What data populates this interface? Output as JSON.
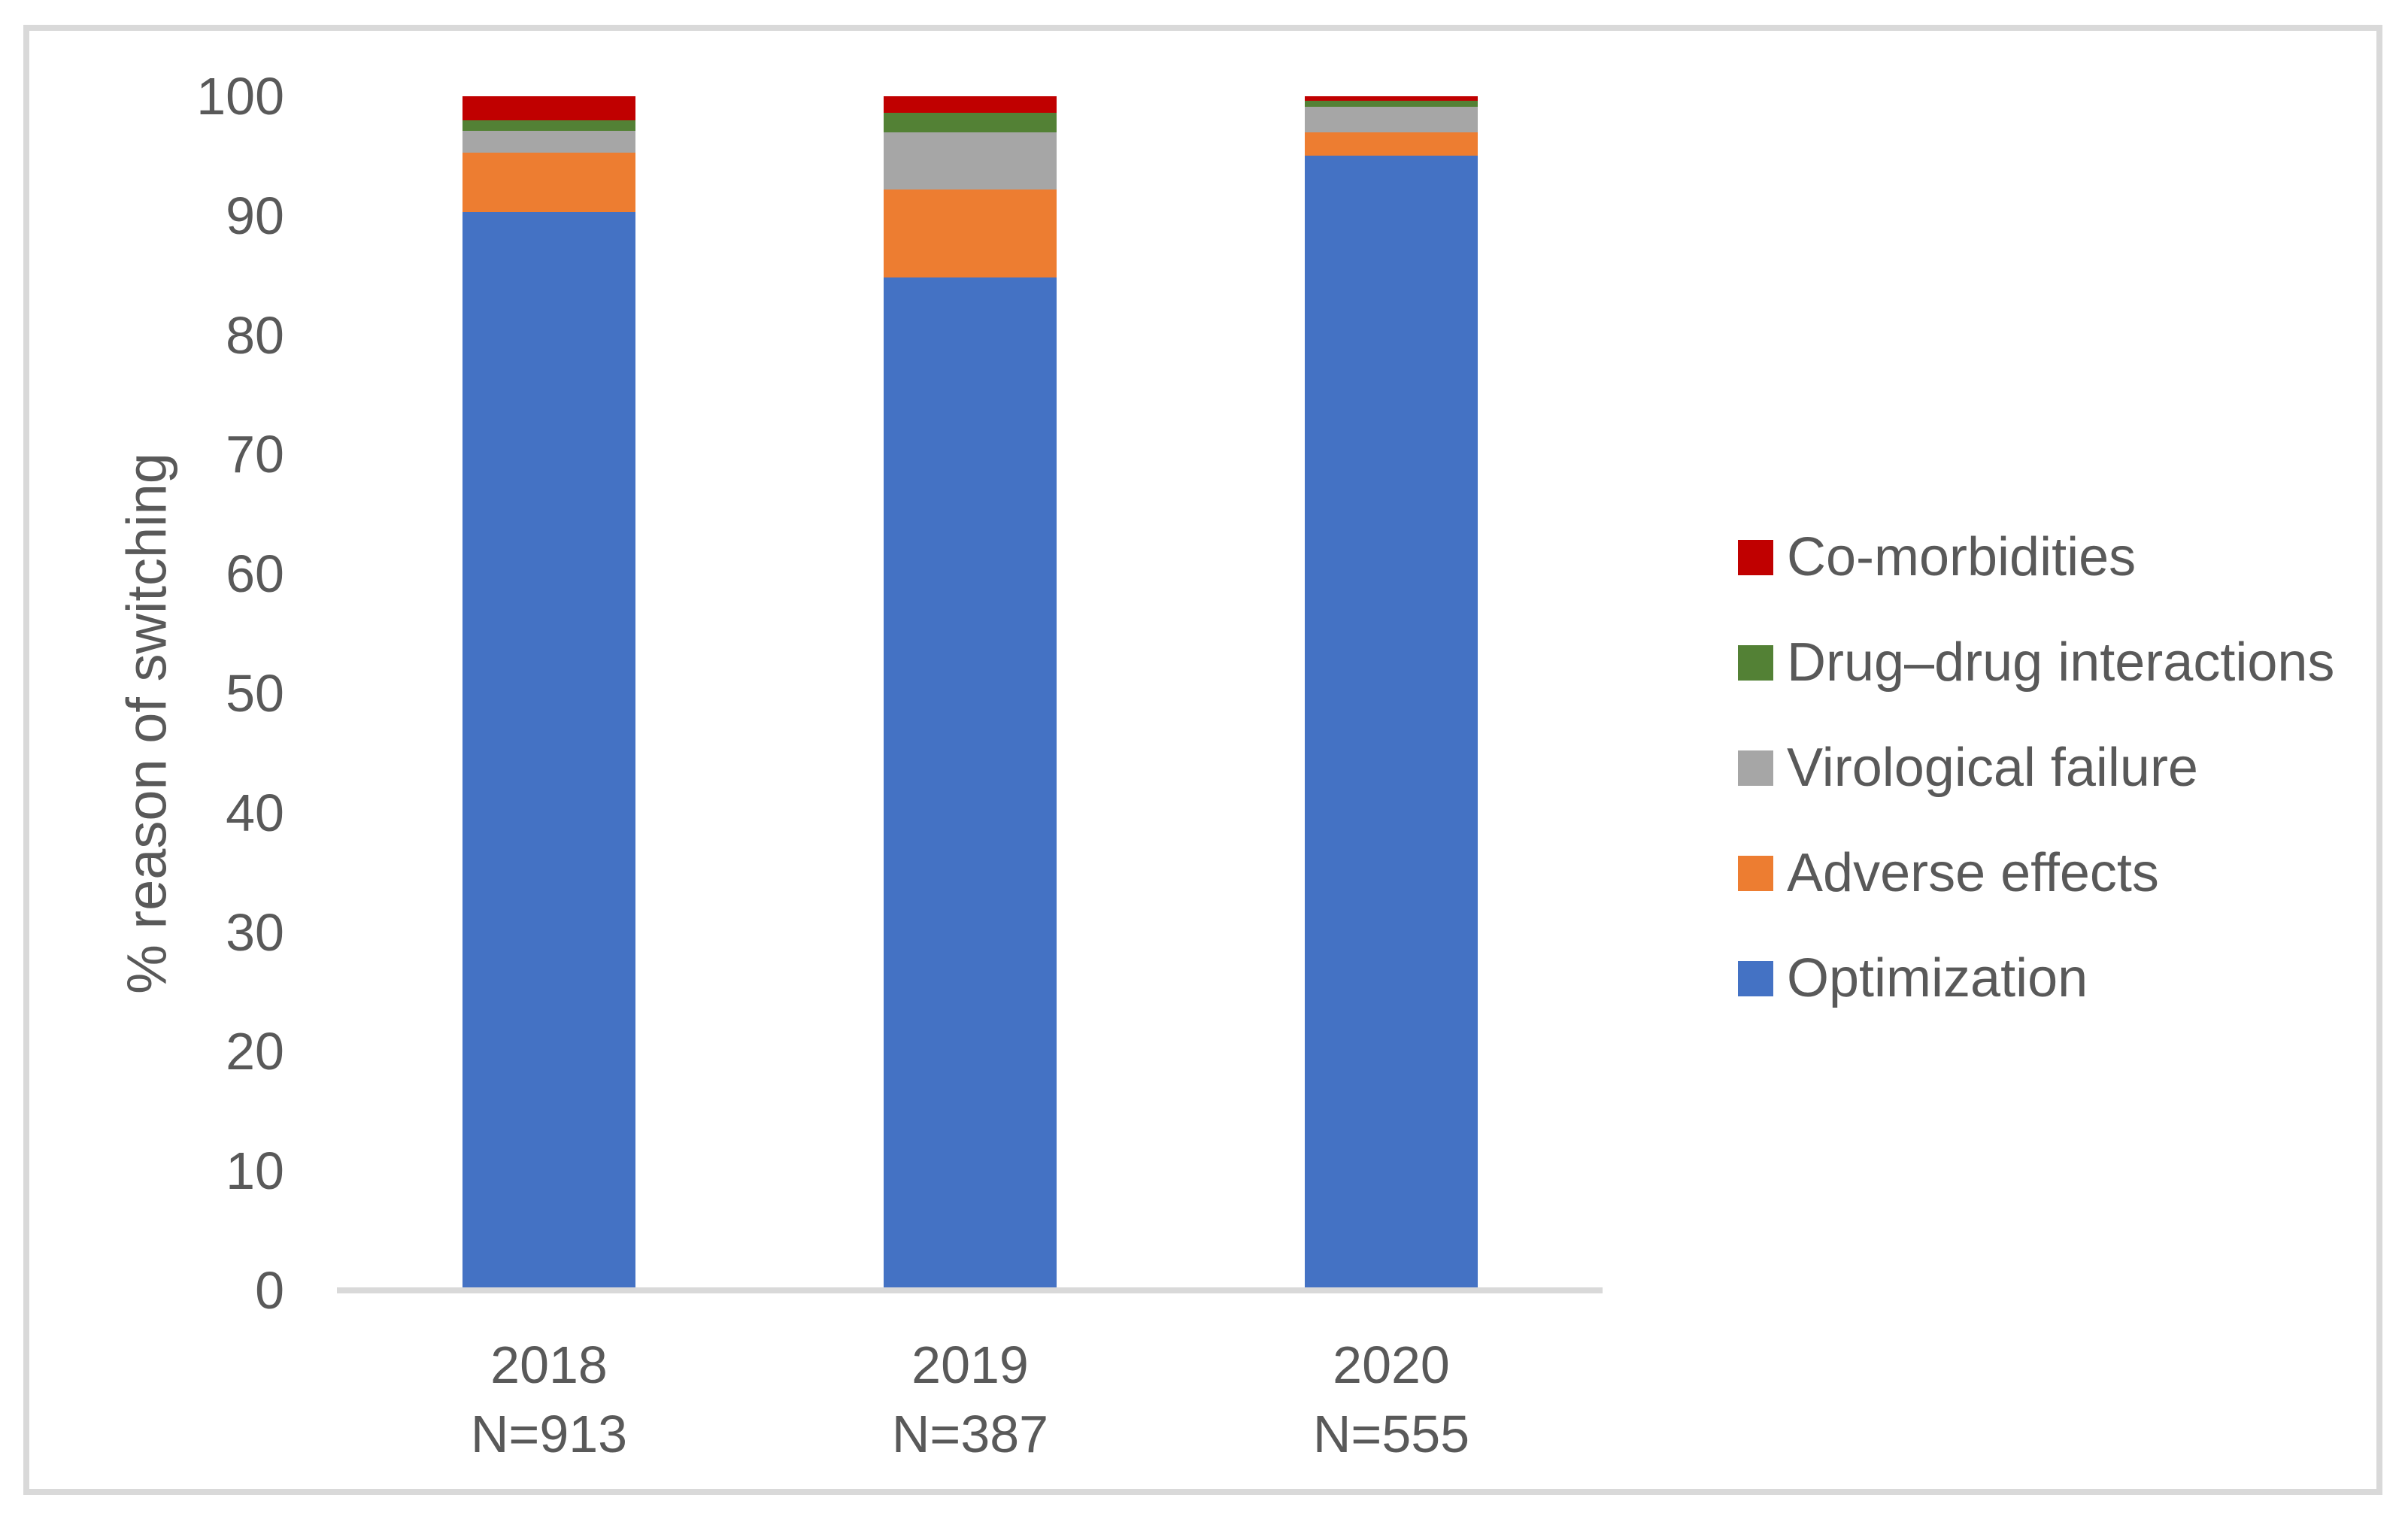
{
  "figure": {
    "kind": "stacked-bar-chart-figure",
    "background": "#ffffff",
    "border_color": "#D9D9D9",
    "text_color": "#595959",
    "axis_line_color": "#D9D9D9"
  },
  "chart_data": {
    "type": "bar",
    "stacked": true,
    "title": "",
    "xlabel": "",
    "ylabel": "% reason of switching",
    "ylim": [
      0,
      100
    ],
    "yticks": [
      0,
      10,
      20,
      30,
      40,
      50,
      60,
      70,
      80,
      90,
      100
    ],
    "grid": false,
    "legend_position": "right",
    "categories": [
      "2018",
      "2019",
      "2020"
    ],
    "category_sublabels": [
      "N=913",
      "N=387",
      "N=555"
    ],
    "series": [
      {
        "name": "Optimization",
        "color": "#4472C4",
        "values": [
          90.3,
          84.8,
          95.0
        ]
      },
      {
        "name": "Adverse effects",
        "color": "#ED7D31",
        "values": [
          5.0,
          7.4,
          2.0
        ]
      },
      {
        "name": "Virological failure",
        "color": "#A6A6A6",
        "values": [
          1.8,
          4.8,
          2.1
        ]
      },
      {
        "name": "Drug–drug interactions",
        "color": "#538135",
        "values": [
          0.9,
          1.6,
          0.5
        ]
      },
      {
        "name": "Co-morbidities",
        "color": "#C00000",
        "values": [
          2.0,
          1.4,
          0.4
        ]
      }
    ],
    "legend": [
      {
        "label": "Co-morbidities",
        "color": "#C00000"
      },
      {
        "label": "Drug–drug interactions",
        "color": "#538135"
      },
      {
        "label": "Virological failure",
        "color": "#A6A6A6"
      },
      {
        "label": "Adverse effects",
        "color": "#ED7D31"
      },
      {
        "label": "Optimization",
        "color": "#4472C4"
      }
    ]
  }
}
